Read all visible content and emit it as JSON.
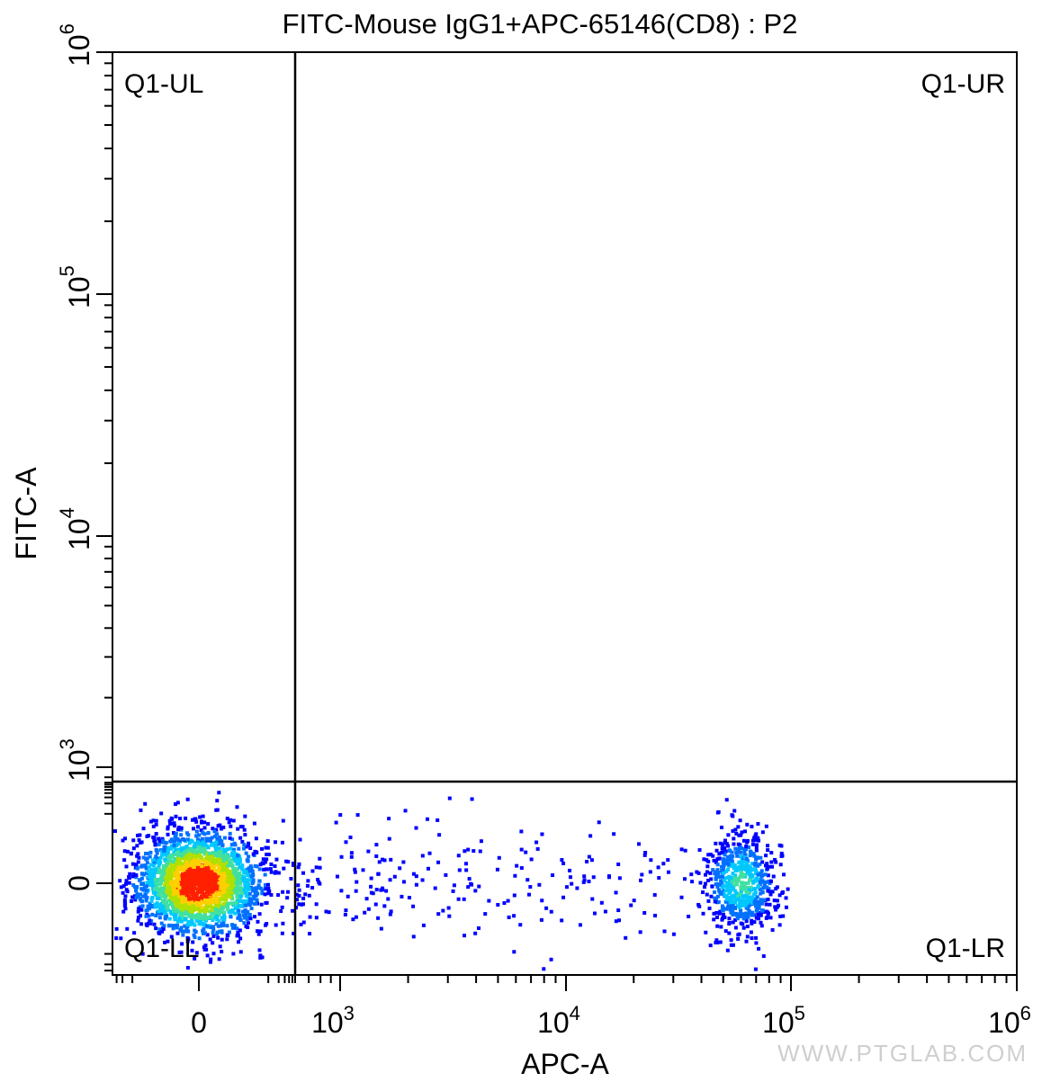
{
  "chart_data": {
    "type": "scatter",
    "title": "FITC-Mouse IgG1+APC-65146(CD8) : P2",
    "xlabel": "APC-A",
    "ylabel": "FITC-A",
    "x_scale": "biexponential",
    "y_scale": "biexponential",
    "x_ticks": [
      {
        "value": 0,
        "base": "0",
        "exp": ""
      },
      {
        "value": 1000,
        "base": "10",
        "exp": "3"
      },
      {
        "value": 10000,
        "base": "10",
        "exp": "4"
      },
      {
        "value": 100000,
        "base": "10",
        "exp": "5"
      },
      {
        "value": 1000000,
        "base": "10",
        "exp": "6"
      }
    ],
    "y_ticks": [
      {
        "value": 0,
        "base": "0",
        "exp": ""
      },
      {
        "value": 1000,
        "base": "10",
        "exp": "3"
      },
      {
        "value": 10000,
        "base": "10",
        "exp": "4"
      },
      {
        "value": 100000,
        "base": "10",
        "exp": "5"
      },
      {
        "value": 1000000,
        "base": "10",
        "exp": "6"
      }
    ],
    "quadrant_gate": {
      "x": 600,
      "y": 860
    },
    "quadrants": {
      "ul": "Q1-UL",
      "ur": "Q1-UR",
      "ll": "Q1-LL",
      "lr": "Q1-LR"
    },
    "populations": [
      {
        "center_x": 0,
        "center_y": 0,
        "quadrant": "Q1-LL",
        "density": "high"
      },
      {
        "center_x": 60000,
        "center_y": 0,
        "quadrant": "Q1-LR",
        "density": "medium"
      },
      {
        "x_range": [
          600,
          40000
        ],
        "center_y": 0,
        "quadrant": "Q1-LR",
        "density": "sparse"
      }
    ],
    "density_colors": [
      "#0000ff",
      "#0070ff",
      "#00c8ff",
      "#40e0a0",
      "#b0e000",
      "#ffd000",
      "#ff2000"
    ],
    "grid": false
  },
  "watermark": "WWW.PTGLAB.COM"
}
